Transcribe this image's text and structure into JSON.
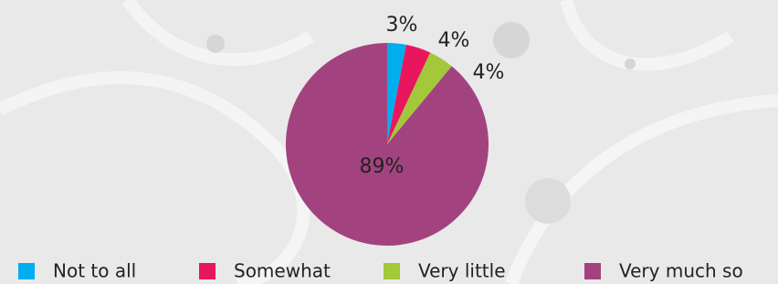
{
  "chart_data": {
    "type": "pie",
    "categories": [
      "Not to all",
      "Somewhat",
      "Very little",
      "Very much so"
    ],
    "values": [
      3,
      4,
      4,
      89
    ],
    "value_labels": [
      "3%",
      "4%",
      "4%",
      "89%"
    ],
    "colors": [
      "#00aeef",
      "#e8175d",
      "#a3c83a",
      "#a2437f"
    ],
    "legend": "bottom"
  }
}
